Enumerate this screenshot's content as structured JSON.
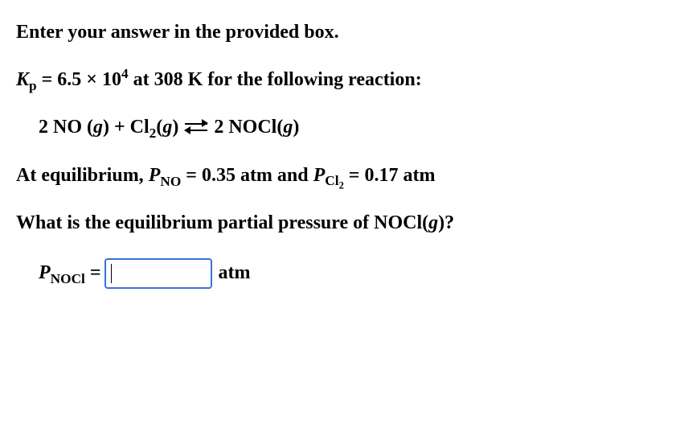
{
  "intro": "Enter your answer in the provided box.",
  "kp": {
    "symbol": "K",
    "sub": "p",
    "equals": " = 6.5 × 10",
    "exp": "4",
    "rest": " at 308 K for the following reaction:"
  },
  "reaction": {
    "lhs1": "2 NO (",
    "g1": "g",
    "lhs2": ") + Cl",
    "cl_sub": "2",
    "lhs3": "(",
    "g2": "g",
    "lhs4": ")",
    "rhs1": "2 NOCl(",
    "g3": "g",
    "rhs2": ")"
  },
  "equil": {
    "pre": "At equilibrium, ",
    "p1": "P",
    "p1sub": "NO",
    "p1val": " = 0.35 atm and ",
    "p2": "P",
    "p2sub_a": "Cl",
    "p2sub_b": "2",
    "p2val": " = 0.17 atm"
  },
  "question": {
    "pre": "What is the equilibrium partial pressure of NOCl(",
    "g": "g",
    "post": ")?"
  },
  "answer": {
    "p": "P",
    "psub": "NOCl",
    "eq": " = ",
    "unit": "atm"
  },
  "style": {
    "background": "#ffffff",
    "text_color": "#000000",
    "box_border": "#3a72d8",
    "fontsize": 24
  }
}
